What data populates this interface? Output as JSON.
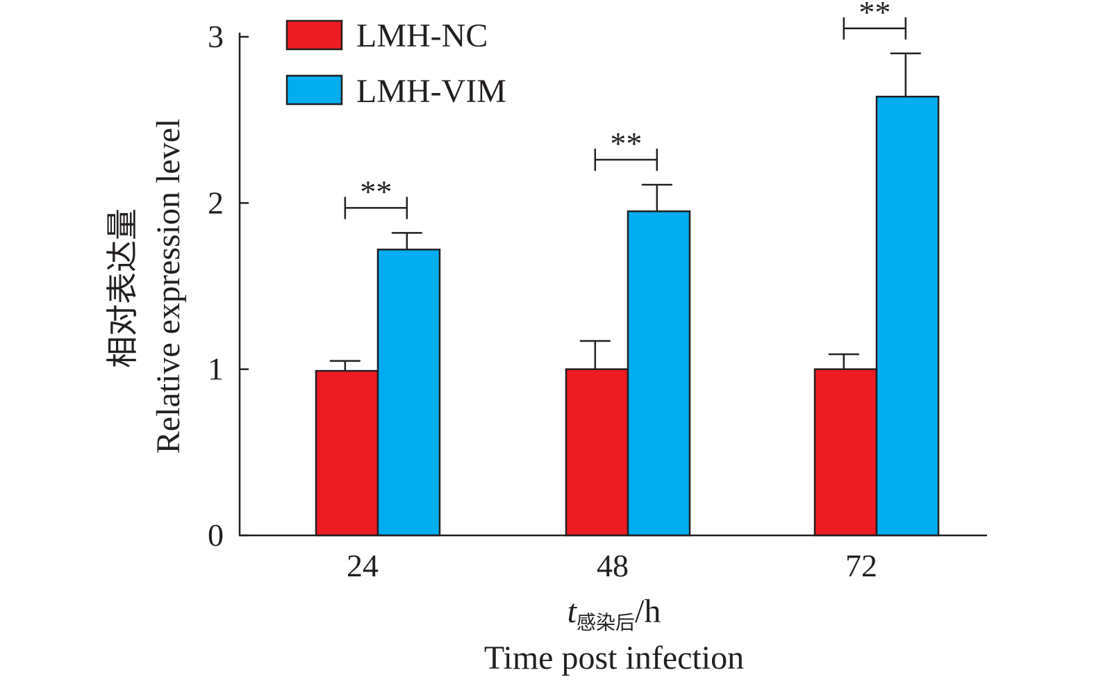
{
  "chart_data": {
    "type": "bar",
    "categories": [
      "24",
      "48",
      "72"
    ],
    "series": [
      {
        "name": "LMH-NC",
        "color": "#ED1C24",
        "values": [
          0.99,
          1.0,
          1.0
        ],
        "error": [
          0.06,
          0.17,
          0.09
        ]
      },
      {
        "name": "LMH-VIM",
        "color": "#00AEEF",
        "values": [
          1.72,
          1.95,
          2.64
        ],
        "error": [
          0.1,
          0.16,
          0.26
        ]
      }
    ],
    "significance": [
      "**",
      "**",
      "**"
    ],
    "ylabel_cn": "相对表达量",
    "ylabel": "Relative expression level",
    "xlabel_var": "t",
    "xlabel_sub": "感染后",
    "xlabel_unit": "/h",
    "xlabel": "Time post infection",
    "ylim": [
      0,
      3
    ],
    "yticks": [
      "0",
      "1",
      "2",
      "3"
    ],
    "grid": false,
    "legend_position": "top-left"
  }
}
